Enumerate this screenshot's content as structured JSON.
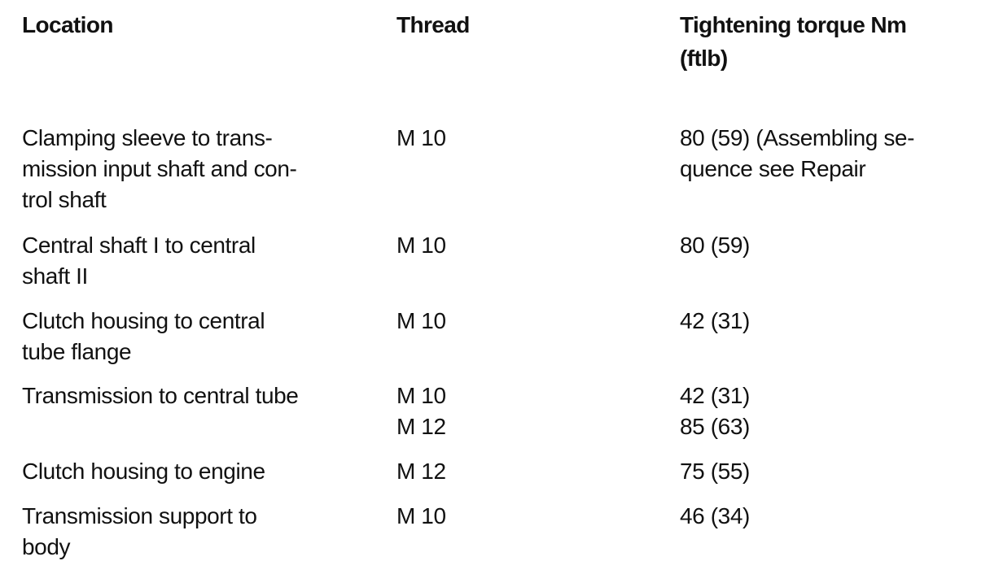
{
  "table": {
    "header": [
      [
        "Location"
      ],
      [
        "Thread"
      ],
      [
        "Tightening torque Nm",
        "(ftlb)"
      ]
    ],
    "rows": [
      [
        [
          "Clamping sleeve to trans-",
          "mission input shaft and con-",
          "trol shaft"
        ],
        [
          "M 10"
        ],
        [
          "80 (59) (Assembling se-",
          "quence see Repair"
        ]
      ],
      [
        [
          "Central shaft I to central",
          "shaft II"
        ],
        [
          "M 10"
        ],
        [
          "80 (59)"
        ]
      ],
      [
        [
          "Clutch housing to central",
          "tube flange"
        ],
        [
          "M 10"
        ],
        [
          "42 (31)"
        ]
      ],
      [
        [
          "Transmission to central tube"
        ],
        [
          "M 10",
          "M 12"
        ],
        [
          "42 (31)",
          "85 (63)"
        ]
      ],
      [
        [
          "Clutch housing to engine"
        ],
        [
          "M 12"
        ],
        [
          "75 (55)"
        ]
      ],
      [
        [
          "Transmission support to",
          "body"
        ],
        [
          "M 10"
        ],
        [
          "46 (34)"
        ]
      ]
    ]
  }
}
